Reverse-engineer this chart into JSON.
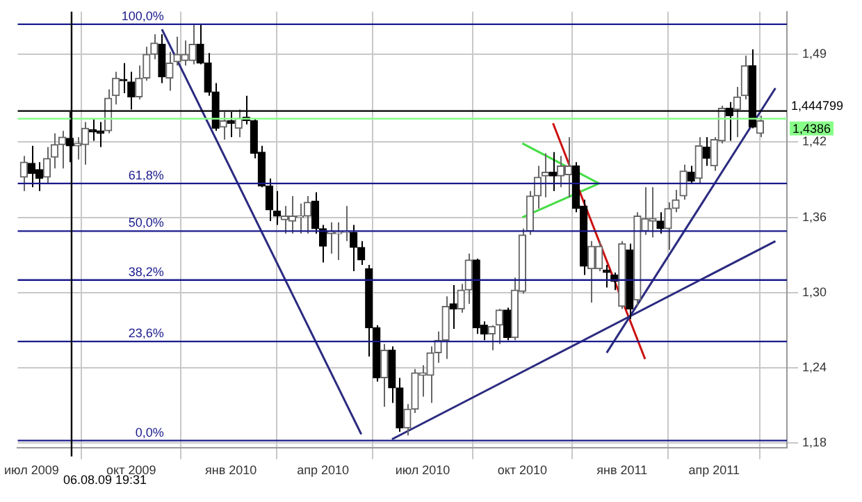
{
  "chart_data": {
    "type": "candlestick",
    "ylim": [
      1.176,
      1.524
    ],
    "grid": true,
    "marker": "none",
    "categories": [
      null,
      "июл 2009",
      null,
      null,
      null,
      null,
      null,
      null,
      null,
      null,
      null,
      null,
      null,
      null,
      "окт 2009",
      null,
      null,
      null,
      null,
      null,
      null,
      null,
      null,
      null,
      null,
      null,
      null,
      "янв 2010",
      null,
      null,
      null,
      null,
      null,
      null,
      null,
      null,
      null,
      null,
      null,
      "апр 2010",
      null,
      null,
      null,
      null,
      null,
      null,
      null,
      null,
      null,
      null,
      null,
      null,
      "июл 2010",
      null,
      null,
      null,
      null,
      null,
      null,
      null,
      null,
      null,
      null,
      null,
      null,
      "окт 2010",
      null,
      null,
      null,
      null,
      null,
      null,
      null,
      null,
      null,
      null,
      null,
      null,
      "янв 2011",
      null,
      null,
      null,
      null,
      null,
      null,
      null,
      null,
      null,
      null,
      null,
      "апр 2011",
      null,
      null,
      null,
      null,
      null,
      null,
      null,
      null,
      null
    ],
    "yticks": [
      {
        "value": 1.18,
        "label": "1,18"
      },
      {
        "value": 1.24,
        "label": "1,24"
      },
      {
        "value": 1.3,
        "label": "1,30"
      },
      {
        "value": 1.36,
        "label": "1,36"
      },
      {
        "value": 1.42,
        "label": "1,42"
      },
      {
        "value": 1.49,
        "label": "1,49"
      }
    ],
    "series": [
      {
        "type": "candlestick",
        "colors": [
          "#666666",
          "#000000",
          "#000000",
          "#666666",
          "#666666",
          "#666666",
          "#000000",
          "#666666",
          "#666666",
          "#000000",
          "#000000",
          "#666666",
          "#666666",
          "#000000",
          "#000000",
          "#666666",
          "#666666",
          "#666666",
          "#000000",
          "#666666",
          "#666666",
          "#666666",
          "#666666",
          "#000000",
          "#000000",
          "#000000",
          "#666666",
          "#000000",
          "#666666",
          "#000000",
          "#000000",
          "#000000",
          "#000000",
          "#000000",
          "#666666",
          "#666666",
          "#666666",
          "#666666",
          "#000000",
          "#000000",
          "#666666",
          "#666666",
          "#666666",
          "#000000",
          "#000000",
          "#000000",
          "#000000",
          "#666666",
          "#000000",
          "#000000",
          "#666666",
          "#666666",
          "#666666",
          "#666666",
          "#666666",
          "#666666",
          "#000000",
          "#666666",
          "#666666",
          "#000000",
          "#000000",
          "#666666",
          "#666666",
          "#000000",
          "#666666",
          "#666666",
          "#666666",
          "#666666",
          "#666666",
          "#000000",
          "#666666",
          "#666666",
          "#000000",
          "#000000",
          "#666666",
          "#666666",
          "#000000",
          "#000000",
          "#666666",
          "#000000",
          "#666666",
          "#666666",
          "#666666",
          "#000000",
          "#666666",
          "#666666",
          "#666666",
          "#000000",
          "#666666",
          "#000000",
          "#666666",
          "#666666",
          "#000000",
          "#666666",
          "#666666",
          "#000000",
          "#666666",
          null,
          null,
          null
        ],
        "ohlc": [
          [
            1.392,
            1.409,
            1.381,
            1.404
          ],
          [
            1.403,
            1.417,
            1.384,
            1.395
          ],
          [
            1.398,
            1.404,
            1.381,
            1.391
          ],
          [
            1.392,
            1.416,
            1.387,
            1.407
          ],
          [
            1.408,
            1.427,
            1.399,
            1.418
          ],
          [
            1.418,
            1.429,
            1.399,
            1.424
          ],
          [
            1.423,
            1.444,
            1.404,
            1.417
          ],
          [
            1.417,
            1.424,
            1.406,
            1.419
          ],
          [
            1.418,
            1.436,
            1.402,
            1.431
          ],
          [
            1.43,
            1.439,
            1.421,
            1.428
          ],
          [
            1.429,
            1.436,
            1.416,
            1.427
          ],
          [
            1.429,
            1.462,
            1.427,
            1.455
          ],
          [
            1.457,
            1.476,
            1.45,
            1.471
          ],
          [
            1.47,
            1.483,
            1.459,
            1.469
          ],
          [
            1.468,
            1.476,
            1.446,
            1.456
          ],
          [
            1.456,
            1.481,
            1.454,
            1.471
          ],
          [
            1.471,
            1.496,
            1.469,
            1.49
          ],
          [
            1.49,
            1.506,
            1.486,
            1.499
          ],
          [
            1.498,
            1.506,
            1.467,
            1.472
          ],
          [
            1.471,
            1.492,
            1.461,
            1.483
          ],
          [
            1.484,
            1.504,
            1.481,
            1.49
          ],
          [
            1.485,
            1.501,
            1.481,
            1.49
          ],
          [
            1.485,
            1.514,
            1.482,
            1.498
          ],
          [
            1.498,
            1.514,
            1.482,
            1.483
          ],
          [
            1.483,
            1.491,
            1.457,
            1.46
          ],
          [
            1.46,
            1.467,
            1.429,
            1.431
          ],
          [
            1.432,
            1.444,
            1.422,
            1.437
          ],
          [
            1.437,
            1.444,
            1.424,
            1.435
          ],
          [
            1.431,
            1.446,
            1.424,
            1.439
          ],
          [
            1.44,
            1.457,
            1.434,
            1.437
          ],
          [
            1.437,
            1.439,
            1.407,
            1.411
          ],
          [
            1.412,
            1.417,
            1.384,
            1.385
          ],
          [
            1.385,
            1.391,
            1.357,
            1.366
          ],
          [
            1.365,
            1.381,
            1.354,
            1.361
          ],
          [
            1.358,
            1.369,
            1.347,
            1.361
          ],
          [
            1.357,
            1.377,
            1.347,
            1.361
          ],
          [
            1.36,
            1.371,
            1.347,
            1.361
          ],
          [
            1.361,
            1.377,
            1.347,
            1.372
          ],
          [
            1.373,
            1.38,
            1.347,
            1.351
          ],
          [
            1.351,
            1.354,
            1.324,
            1.337
          ],
          [
            1.347,
            1.356,
            1.331,
            1.349
          ],
          [
            1.347,
            1.356,
            1.326,
            1.348
          ],
          [
            1.348,
            1.369,
            1.341,
            1.349
          ],
          [
            1.348,
            1.354,
            1.317,
            1.336
          ],
          [
            1.336,
            1.341,
            1.322,
            1.326
          ],
          [
            1.319,
            1.322,
            1.249,
            1.272
          ],
          [
            1.272,
            1.274,
            1.229,
            1.232
          ],
          [
            1.232,
            1.259,
            1.209,
            1.254
          ],
          [
            1.254,
            1.257,
            1.212,
            1.224
          ],
          [
            1.224,
            1.232,
            1.189,
            1.192
          ],
          [
            1.192,
            1.211,
            1.186,
            1.207
          ],
          [
            1.207,
            1.239,
            1.204,
            1.236
          ],
          [
            1.234,
            1.242,
            1.217,
            1.236
          ],
          [
            1.234,
            1.257,
            1.212,
            1.252
          ],
          [
            1.252,
            1.269,
            1.244,
            1.262
          ],
          [
            1.262,
            1.297,
            1.247,
            1.289
          ],
          [
            1.291,
            1.306,
            1.271,
            1.287
          ],
          [
            1.287,
            1.307,
            1.284,
            1.302
          ],
          [
            1.302,
            1.331,
            1.291,
            1.326
          ],
          [
            1.326,
            1.327,
            1.267,
            1.272
          ],
          [
            1.274,
            1.277,
            1.262,
            1.267
          ],
          [
            1.267,
            1.274,
            1.254,
            1.273
          ],
          [
            1.274,
            1.287,
            1.259,
            1.286
          ],
          [
            1.286,
            1.288,
            1.262,
            1.264
          ],
          [
            1.264,
            1.312,
            1.262,
            1.302
          ],
          [
            1.301,
            1.351,
            1.299,
            1.346
          ],
          [
            1.349,
            1.381,
            1.346,
            1.377
          ],
          [
            1.377,
            1.401,
            1.367,
            1.392
          ],
          [
            1.393,
            1.411,
            1.376,
            1.396
          ],
          [
            1.396,
            1.412,
            1.381,
            1.393
          ],
          [
            1.393,
            1.409,
            1.384,
            1.401
          ],
          [
            1.394,
            1.424,
            1.376,
            1.401
          ],
          [
            1.401,
            1.404,
            1.364,
            1.367
          ],
          [
            1.369,
            1.374,
            1.314,
            1.321
          ],
          [
            1.319,
            1.341,
            1.292,
            1.337
          ],
          [
            1.319,
            1.341,
            1.317,
            1.337
          ],
          [
            1.318,
            1.322,
            1.304,
            1.316
          ],
          [
            1.314,
            1.316,
            1.302,
            1.309
          ],
          [
            1.289,
            1.341,
            1.287,
            1.339
          ],
          [
            1.334,
            1.339,
            1.279,
            1.287
          ],
          [
            1.294,
            1.364,
            1.289,
            1.361
          ],
          [
            1.349,
            1.384,
            1.346,
            1.359
          ],
          [
            1.357,
            1.384,
            1.344,
            1.359
          ],
          [
            1.357,
            1.364,
            1.347,
            1.351
          ],
          [
            1.351,
            1.372,
            1.334,
            1.367
          ],
          [
            1.367,
            1.382,
            1.364,
            1.374
          ],
          [
            1.377,
            1.402,
            1.374,
            1.397
          ],
          [
            1.396,
            1.401,
            1.387,
            1.389
          ],
          [
            1.391,
            1.424,
            1.387,
            1.417
          ],
          [
            1.416,
            1.424,
            1.401,
            1.407
          ],
          [
            1.401,
            1.424,
            1.397,
            1.422
          ],
          [
            1.421,
            1.449,
            1.419,
            1.447
          ],
          [
            1.447,
            1.452,
            1.421,
            1.441
          ],
          [
            1.446,
            1.464,
            1.424,
            1.456
          ],
          [
            1.457,
            1.489,
            1.454,
            1.481
          ],
          [
            1.481,
            1.494,
            1.431,
            1.432
          ],
          [
            1.427,
            1.441,
            1.424,
            1.437
          ],
          null,
          null,
          null
        ]
      },
      {
        "type": "line",
        "color": "#2b2b80",
        "values": [
          null,
          null,
          null,
          null,
          null,
          null,
          null,
          null,
          null,
          null,
          null,
          null,
          null,
          null,
          null,
          null,
          null,
          null,
          1.51,
          null,
          null,
          null,
          null,
          null,
          null,
          null,
          null,
          null,
          null,
          null,
          null,
          null,
          null,
          null,
          null,
          null,
          null,
          null,
          null,
          null,
          null,
          null,
          null,
          null,
          1.187,
          null,
          null,
          null,
          null,
          null,
          null,
          null,
          null,
          null,
          null,
          null,
          null,
          null,
          null,
          null,
          null,
          null,
          null,
          null,
          null,
          null,
          null,
          null,
          null,
          null,
          null,
          null,
          null,
          null,
          null,
          null,
          null,
          null,
          null,
          null,
          null,
          null,
          null,
          null,
          null,
          null,
          null,
          null,
          null,
          null,
          null,
          null,
          null,
          null,
          null,
          null,
          null,
          null,
          null,
          null
        ]
      },
      {
        "type": "line",
        "color": "#2b2b80",
        "values": [
          null,
          null,
          null,
          null,
          null,
          null,
          null,
          null,
          null,
          null,
          null,
          null,
          null,
          null,
          null,
          null,
          null,
          null,
          null,
          null,
          null,
          null,
          null,
          null,
          null,
          null,
          null,
          null,
          null,
          null,
          null,
          null,
          null,
          null,
          null,
          null,
          null,
          null,
          null,
          null,
          null,
          null,
          null,
          null,
          null,
          null,
          null,
          null,
          1.183,
          null,
          null,
          null,
          null,
          null,
          null,
          null,
          null,
          null,
          null,
          null,
          null,
          null,
          null,
          null,
          null,
          null,
          null,
          null,
          null,
          null,
          null,
          null,
          null,
          null,
          null,
          null,
          null,
          null,
          null,
          null,
          null,
          null,
          null,
          null,
          null,
          null,
          null,
          null,
          null,
          null,
          null,
          null,
          null,
          null,
          null,
          null,
          null,
          null,
          1.341,
          null
        ]
      },
      {
        "type": "line",
        "color": "#2b2b80",
        "values": [
          null,
          null,
          null,
          null,
          null,
          null,
          null,
          null,
          null,
          null,
          null,
          null,
          null,
          null,
          null,
          null,
          null,
          null,
          null,
          null,
          null,
          null,
          null,
          null,
          null,
          null,
          null,
          null,
          null,
          null,
          null,
          null,
          null,
          null,
          null,
          null,
          null,
          null,
          null,
          null,
          null,
          null,
          null,
          null,
          null,
          null,
          null,
          null,
          null,
          null,
          null,
          null,
          null,
          null,
          null,
          null,
          null,
          null,
          null,
          null,
          null,
          null,
          null,
          null,
          null,
          null,
          null,
          null,
          null,
          null,
          null,
          null,
          null,
          null,
          null,
          null,
          1.252,
          null,
          null,
          null,
          null,
          null,
          null,
          null,
          null,
          null,
          null,
          null,
          null,
          null,
          null,
          null,
          null,
          null,
          null,
          null,
          null,
          null,
          1.463,
          null
        ]
      },
      {
        "type": "line",
        "color": "#cc1111",
        "values": [
          null,
          null,
          null,
          null,
          null,
          null,
          null,
          null,
          null,
          null,
          null,
          null,
          null,
          null,
          null,
          null,
          null,
          null,
          null,
          null,
          null,
          null,
          null,
          null,
          null,
          null,
          null,
          null,
          null,
          null,
          null,
          null,
          null,
          null,
          null,
          null,
          null,
          null,
          null,
          null,
          null,
          null,
          null,
          null,
          null,
          null,
          null,
          null,
          null,
          null,
          null,
          null,
          null,
          null,
          null,
          null,
          null,
          null,
          null,
          null,
          null,
          null,
          null,
          null,
          null,
          null,
          null,
          null,
          null,
          1.435,
          null,
          null,
          null,
          null,
          null,
          null,
          null,
          null,
          null,
          null,
          null,
          1.247,
          null,
          null,
          null,
          null,
          null,
          null,
          null,
          null,
          null,
          null,
          null,
          null,
          null,
          null,
          null,
          null,
          null,
          null
        ]
      },
      {
        "type": "line",
        "color": "#44dd44",
        "values": [
          null,
          null,
          null,
          null,
          null,
          null,
          null,
          null,
          null,
          null,
          null,
          null,
          null,
          null,
          null,
          null,
          null,
          null,
          null,
          null,
          null,
          null,
          null,
          null,
          null,
          null,
          null,
          null,
          null,
          null,
          null,
          null,
          null,
          null,
          null,
          null,
          null,
          null,
          null,
          null,
          null,
          null,
          null,
          null,
          null,
          null,
          null,
          null,
          null,
          null,
          null,
          null,
          null,
          null,
          null,
          null,
          null,
          null,
          null,
          null,
          null,
          null,
          null,
          null,
          null,
          1.419,
          null,
          null,
          null,
          null,
          null,
          null,
          null,
          null,
          null,
          1.387,
          null,
          null,
          null,
          null,
          null,
          null,
          null,
          null,
          null,
          null,
          null,
          null,
          null,
          null,
          null,
          null,
          null,
          null,
          null,
          null,
          null,
          null,
          null,
          null
        ]
      },
      {
        "type": "line",
        "color": "#44dd44",
        "values": [
          null,
          null,
          null,
          null,
          null,
          null,
          null,
          null,
          null,
          null,
          null,
          null,
          null,
          null,
          null,
          null,
          null,
          null,
          null,
          null,
          null,
          null,
          null,
          null,
          null,
          null,
          null,
          null,
          null,
          null,
          null,
          null,
          null,
          null,
          null,
          null,
          null,
          null,
          null,
          null,
          null,
          null,
          null,
          null,
          null,
          null,
          null,
          null,
          null,
          null,
          null,
          null,
          null,
          null,
          null,
          null,
          null,
          null,
          null,
          null,
          null,
          null,
          null,
          null,
          null,
          1.36,
          null,
          null,
          null,
          null,
          null,
          null,
          null,
          null,
          null,
          1.387,
          null,
          null,
          null,
          null,
          null,
          null,
          null,
          null,
          null,
          null,
          null,
          null,
          null,
          null,
          null,
          null,
          null,
          null,
          null,
          null,
          null,
          null,
          null,
          null
        ]
      }
    ],
    "ref_lines": [
      {
        "axis": "y",
        "value": 1.514,
        "color": "#1a1a8c"
      },
      {
        "axis": "y",
        "value": 1.387,
        "color": "#1a1a8c"
      },
      {
        "axis": "y",
        "value": 1.349,
        "color": "#1a1a8c"
      },
      {
        "axis": "y",
        "value": 1.31,
        "color": "#1a1a8c"
      },
      {
        "axis": "y",
        "value": 1.261,
        "color": "#1a1a8c"
      },
      {
        "axis": "y",
        "value": 1.182,
        "color": "#1a1a8c"
      },
      {
        "axis": "y",
        "value": 1.444799,
        "label": "1,444799",
        "color": "#000000"
      },
      {
        "axis": "y",
        "value": 1.4386,
        "label": "1,4386",
        "color": "#88ff88"
      }
    ],
    "annotations": [
      {
        "text": "100,0%",
        "y": 1.514
      },
      {
        "text": "61,8%",
        "y": 1.387
      },
      {
        "text": "50,0%",
        "y": 1.349
      },
      {
        "text": "38,2%",
        "y": 1.31
      },
      {
        "text": "23,6%",
        "y": 1.261
      },
      {
        "text": "0,0%",
        "y": 1.182
      },
      "06.08.09 19:31"
    ]
  }
}
